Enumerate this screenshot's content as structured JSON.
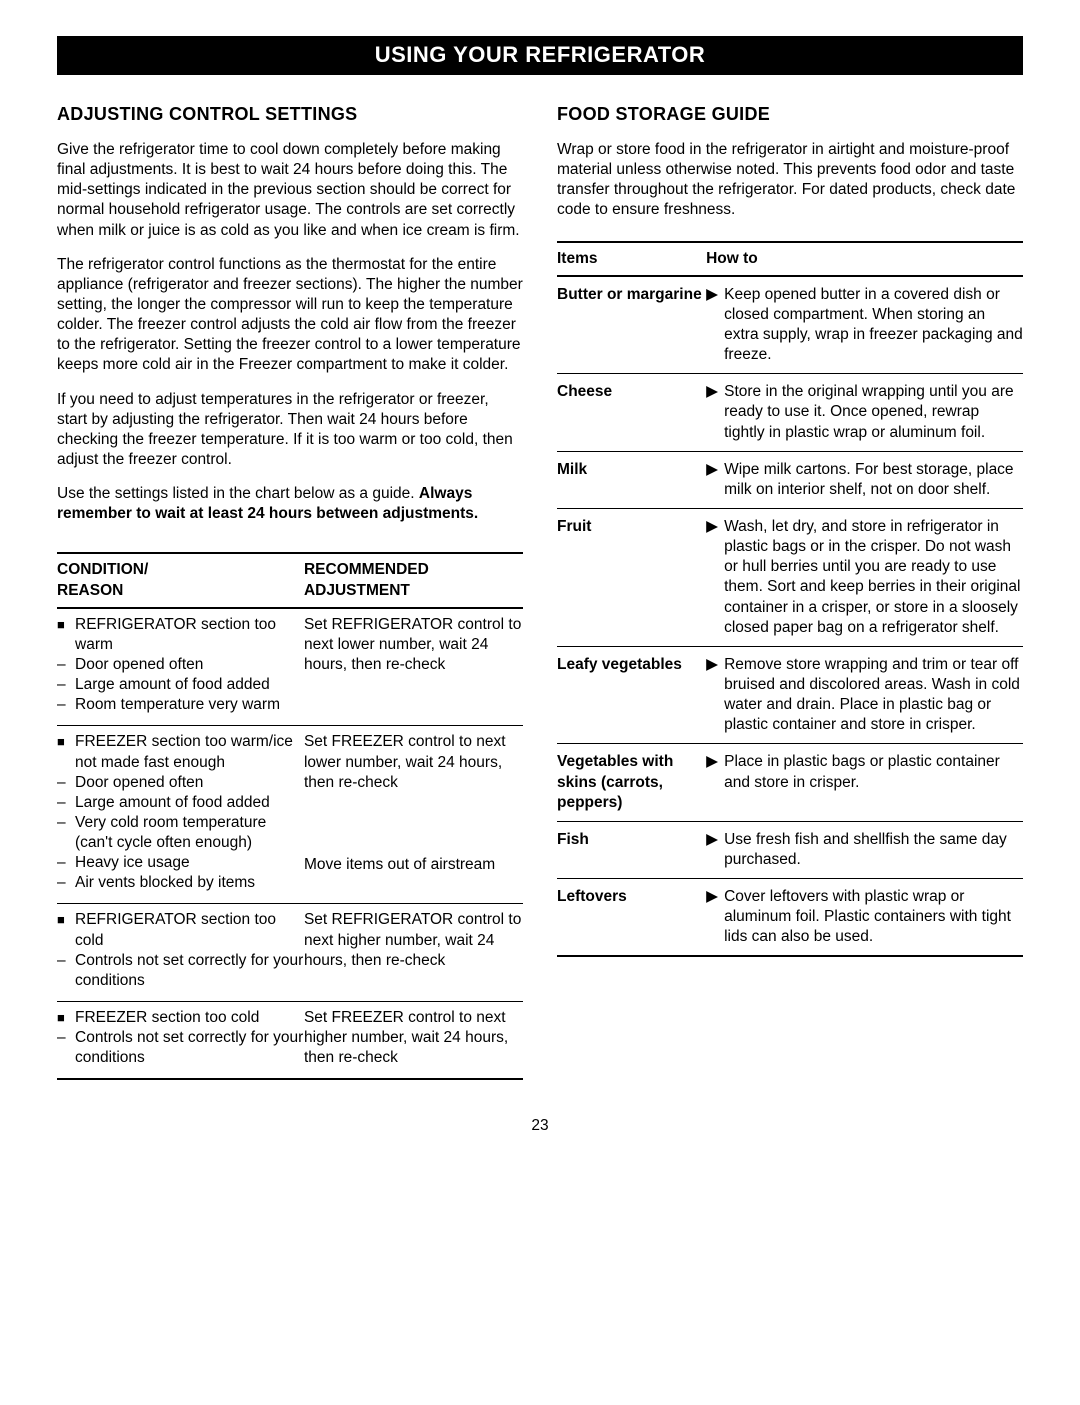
{
  "banner_title": "USING YOUR REFRIGERATOR",
  "page_number": "23",
  "left": {
    "heading": "ADJUSTING CONTROL SETTINGS",
    "p1": "Give the refrigerator time to cool down completely before making final adjustments. It is best to wait 24 hours before doing this. The mid-settings indicated in the previous section should be correct for normal household refrigerator usage. The controls are set correctly when milk or juice is as cold as you like and when ice cream is firm.",
    "p2": "The refrigerator control functions as the thermostat for the entire appliance (refrigerator and freezer sections). The higher the number setting, the longer the compressor will run to keep the temperature colder. The freezer control adjusts the cold air flow from the freezer to the refrigerator. Setting the freezer control to a lower temperature keeps more cold air in the Freezer compartment to make it colder.",
    "p3": "If you need to adjust temperatures in the refrigerator or freezer, start by adjusting the refrigerator. Then wait 24 hours before checking the freezer temperature. If it is too warm or too cold, then adjust the freezer control.",
    "p4a": "Use the settings listed in the chart below as a guide.",
    "p4b": "Always remember to wait at least 24 hours between adjustments.",
    "table": {
      "head_col1a": "CONDITION/",
      "head_col1b": "REASON",
      "head_col2a": "RECOMMENDED",
      "head_col2b": "ADJUSTMENT",
      "rows": [
        {
          "condition": "REFRIGERATOR section too warm",
          "reasons": [
            "Door opened often",
            "Large amount of food added",
            "Room temperature very warm"
          ],
          "adjustment": "Set REFRIGERATOR control to next lower number, wait 24 hours, then re-check"
        },
        {
          "condition": "FREEZER section too warm/ice not made fast enough",
          "reasons": [
            "Door opened often",
            "Large amount of food added",
            "Very cold room temperature (can't cycle often enough)",
            "Heavy ice usage",
            "Air vents blocked by items"
          ],
          "adjustment": "Set FREEZER control to next lower number, wait 24 hours, then re-check",
          "second_adjustment": "Move items out of airstream"
        },
        {
          "condition": "REFRIGERATOR section too cold",
          "reasons": [
            "Controls not set correctly for your conditions"
          ],
          "adjustment": "Set REFRIGERATOR control to next higher number, wait 24 hours, then re-check"
        },
        {
          "condition": "FREEZER section too cold",
          "reasons": [
            "Controls not set correctly for your conditions"
          ],
          "adjustment": "Set FREEZER control to next higher number, wait 24 hours, then re-check"
        }
      ]
    }
  },
  "right": {
    "heading": "FOOD STORAGE GUIDE",
    "p1": "Wrap or store food in the refrigerator in airtight and moisture-proof material unless otherwise noted. This prevents food odor and taste transfer throughout the refrigerator. For dated products, check date code to ensure freshness.",
    "table": {
      "head_col1": "Items",
      "head_col2": "How to",
      "rows": [
        {
          "item": "Butter or margarine",
          "howto": "Keep opened butter in a covered dish or closed compartment. When storing an extra supply, wrap in freezer packaging and freeze."
        },
        {
          "item": "Cheese",
          "howto": "Store in the original wrapping until you are ready to use it. Once opened, rewrap tightly in plastic wrap or aluminum foil."
        },
        {
          "item": "Milk",
          "howto": "Wipe milk cartons. For best storage, place milk on interior shelf, not on door shelf."
        },
        {
          "item": "Fruit",
          "howto": "Wash, let dry, and store in refrigerator in plastic bags or in the crisper. Do not wash or hull berries until you are ready to use them. Sort and keep berries in their original container in a crisper, or store in a sloosely closed paper bag on a refrigerator shelf."
        },
        {
          "item": "Leafy vegetables",
          "howto": "Remove store wrapping and trim or tear off bruised and discolored areas. Wash in cold water and drain. Place in plastic bag or plastic container and store in crisper."
        },
        {
          "item": "Vegetables with skins (carrots, peppers)",
          "howto": "Place in plastic bags or plastic container and store in crisper."
        },
        {
          "item": "Fish",
          "howto": "Use fresh fish and shellfish the same day purchased."
        },
        {
          "item": "Leftovers",
          "howto": "Cover leftovers with plastic wrap or aluminum foil. Plastic containers with tight lids can also be used."
        }
      ]
    }
  }
}
